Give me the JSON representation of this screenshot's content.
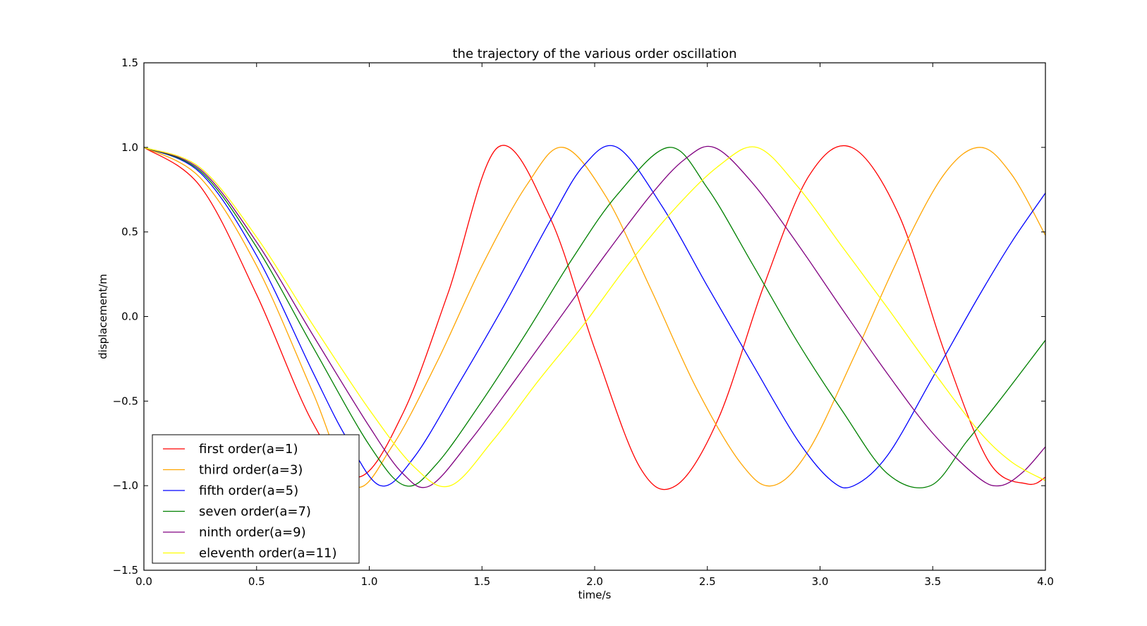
{
  "chart_data": {
    "type": "line",
    "title": "the trajectory of the various order oscillation",
    "xlabel": "time/s",
    "ylabel": "displacement/m",
    "xlim": [
      0.0,
      4.0
    ],
    "ylim": [
      -1.5,
      1.5
    ],
    "xticks": [
      0.0,
      0.5,
      1.0,
      1.5,
      2.0,
      2.5,
      3.0,
      3.5,
      4.0
    ],
    "xtick_labels": [
      "0.0",
      "0.5",
      "1.0",
      "1.5",
      "2.0",
      "2.5",
      "3.0",
      "3.5",
      "4.0"
    ],
    "yticks": [
      1.5,
      1.0,
      0.5,
      0.0,
      -0.5,
      -1.0,
      -1.5
    ],
    "ytick_labels": [
      "1.5",
      "1.0",
      "0.5",
      "0.0",
      "−0.5",
      "−1.0",
      "−1.5"
    ],
    "grid": false,
    "legend_position": "lower-left",
    "series": [
      {
        "name": "first order(a=1)",
        "color": "#ff0000",
        "x": [
          0.0,
          0.25,
          0.5,
          0.75,
          0.95,
          1.15,
          1.35,
          1.57,
          1.8,
          2.0,
          2.2,
          2.36,
          2.55,
          2.75,
          2.95,
          3.14,
          3.35,
          3.55,
          3.75,
          3.92,
          4.0
        ],
        "y": [
          1.0,
          0.77,
          0.13,
          -0.63,
          -0.95,
          -0.57,
          0.14,
          1.0,
          0.59,
          -0.19,
          -0.89,
          -1.0,
          -0.6,
          0.18,
          0.83,
          1.0,
          0.6,
          -0.2,
          -0.86,
          -0.99,
          -0.95
        ]
      },
      {
        "name": "third order(a=3)",
        "color": "#ffa500",
        "x": [
          0.0,
          0.25,
          0.5,
          0.75,
          0.93,
          1.1,
          1.3,
          1.5,
          1.7,
          1.86,
          2.05,
          2.25,
          2.45,
          2.65,
          2.79,
          2.95,
          3.15,
          3.35,
          3.55,
          3.71,
          3.85,
          4.0
        ],
        "y": [
          1.0,
          0.82,
          0.3,
          -0.45,
          -1.0,
          -0.77,
          -0.27,
          0.3,
          0.78,
          1.0,
          0.71,
          0.16,
          -0.42,
          -0.87,
          -1.0,
          -0.79,
          -0.24,
          0.35,
          0.84,
          1.0,
          0.84,
          0.48
        ]
      },
      {
        "name": "fifth order(a=5)",
        "color": "#0000ff",
        "x": [
          0.0,
          0.25,
          0.5,
          0.75,
          0.9,
          1.05,
          1.2,
          1.4,
          1.6,
          1.8,
          1.95,
          2.1,
          2.3,
          2.5,
          2.7,
          2.9,
          3.05,
          3.15,
          3.3,
          3.5,
          3.7,
          3.85,
          4.0
        ],
        "y": [
          1.0,
          0.85,
          0.36,
          -0.33,
          -0.72,
          -1.0,
          -0.83,
          -0.39,
          0.07,
          0.56,
          0.89,
          1.0,
          0.65,
          0.18,
          -0.28,
          -0.73,
          -0.97,
          -1.0,
          -0.82,
          -0.36,
          0.11,
          0.44,
          0.73
        ]
      },
      {
        "name": "seven order(a=7)",
        "color": "#008000",
        "x": [
          0.0,
          0.25,
          0.5,
          0.75,
          1.0,
          1.16,
          1.3,
          1.5,
          1.7,
          1.9,
          2.1,
          2.33,
          2.5,
          2.7,
          2.9,
          3.1,
          3.3,
          3.49,
          3.65,
          3.8,
          4.0
        ],
        "y": [
          1.0,
          0.86,
          0.41,
          -0.18,
          -0.76,
          -1.0,
          -0.87,
          -0.5,
          -0.09,
          0.34,
          0.72,
          1.0,
          0.76,
          0.31,
          -0.15,
          -0.56,
          -0.93,
          -1.0,
          -0.74,
          -0.49,
          -0.14
        ]
      },
      {
        "name": "ninth order(a=9)",
        "color": "#800080",
        "x": [
          0.0,
          0.25,
          0.5,
          0.75,
          1.0,
          1.15,
          1.27,
          1.45,
          1.65,
          1.85,
          2.05,
          2.25,
          2.4,
          2.53,
          2.7,
          2.9,
          3.1,
          3.3,
          3.5,
          3.7,
          3.8,
          3.9,
          4.0
        ],
        "y": [
          1.0,
          0.87,
          0.44,
          -0.11,
          -0.65,
          -0.93,
          -1.0,
          -0.73,
          -0.37,
          0.0,
          0.37,
          0.72,
          0.93,
          1.0,
          0.79,
          0.43,
          0.04,
          -0.34,
          -0.69,
          -0.95,
          -1.0,
          -0.92,
          -0.77
        ]
      },
      {
        "name": "eleventh order(a=11)",
        "color": "#ffff00",
        "x": [
          0.0,
          0.25,
          0.5,
          0.75,
          1.0,
          1.2,
          1.36,
          1.55,
          1.75,
          1.95,
          2.15,
          2.35,
          2.55,
          2.72,
          2.9,
          3.1,
          3.3,
          3.5,
          3.7,
          3.85,
          4.0
        ],
        "y": [
          1.0,
          0.88,
          0.47,
          -0.05,
          -0.55,
          -0.89,
          -1.0,
          -0.73,
          -0.38,
          -0.05,
          0.31,
          0.63,
          0.89,
          1.0,
          0.77,
          0.41,
          0.05,
          -0.32,
          -0.67,
          -0.86,
          -0.97
        ]
      }
    ]
  }
}
